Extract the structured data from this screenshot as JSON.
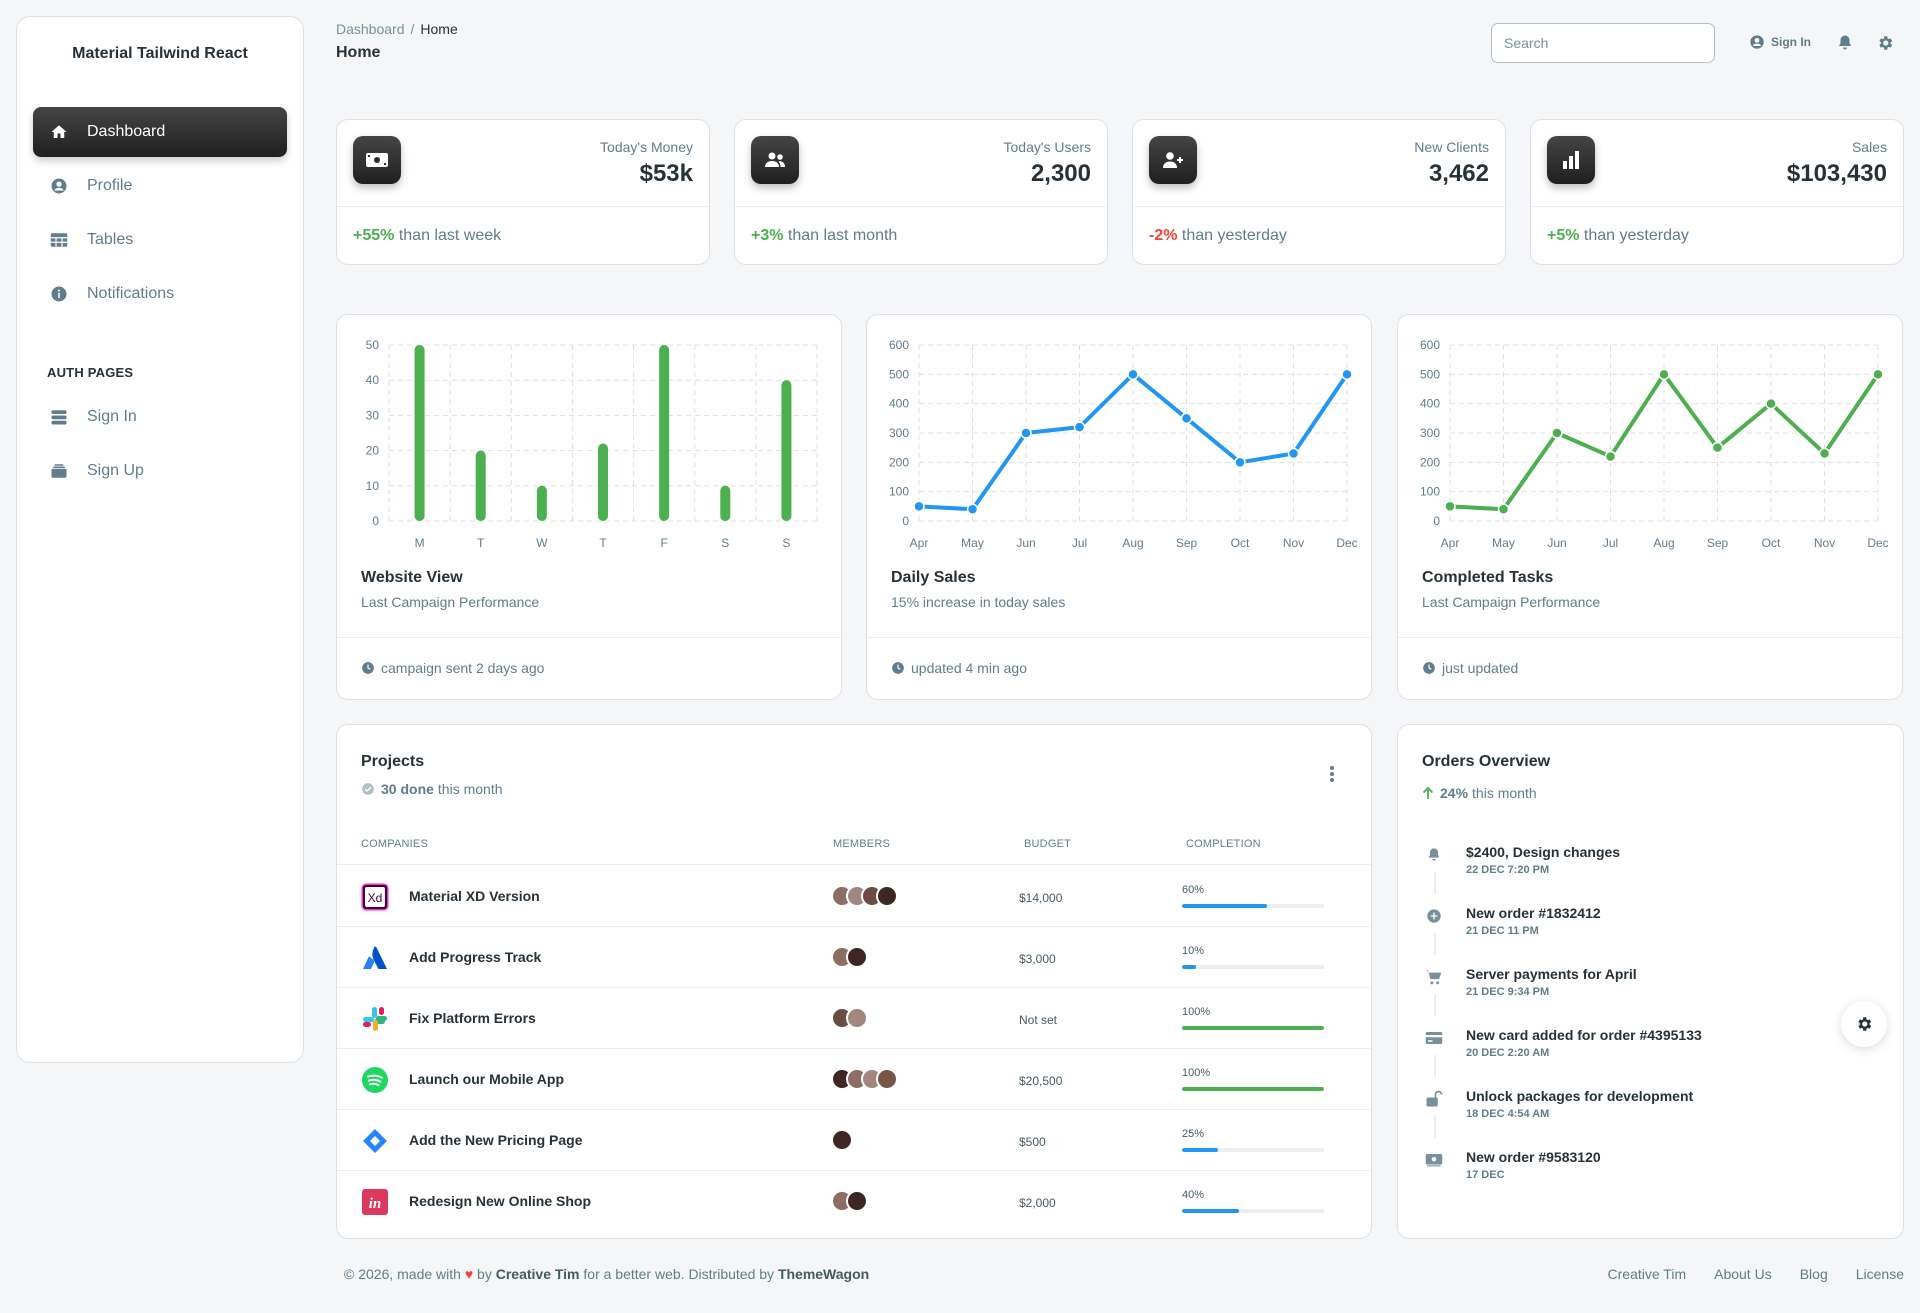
{
  "sidebar": {
    "brand": "Material Tailwind React",
    "items": [
      {
        "label": "Dashboard",
        "icon": "home-icon",
        "active": true
      },
      {
        "label": "Profile",
        "icon": "user-circle-icon"
      },
      {
        "label": "Tables",
        "icon": "table-icon"
      },
      {
        "label": "Notifications",
        "icon": "info-icon"
      }
    ],
    "section_title": "AUTH PAGES",
    "auth_items": [
      {
        "label": "Sign In",
        "icon": "server-stack-icon"
      },
      {
        "label": "Sign Up",
        "icon": "rectangle-stack-icon"
      }
    ]
  },
  "header": {
    "breadcrumb": [
      "Dashboard",
      "Home"
    ],
    "title": "Home",
    "search_placeholder": "Search",
    "signin_label": "Sign In",
    "icons": [
      "bell-icon",
      "gear-icon"
    ]
  },
  "stats": [
    {
      "label": "Today's Money",
      "value": "$53k",
      "change": "+55%",
      "tail": "than last week",
      "trend": "up",
      "icon": "banknotes-icon"
    },
    {
      "label": "Today's Users",
      "value": "2,300",
      "change": "+3%",
      "tail": "than last month",
      "trend": "up",
      "icon": "users-icon"
    },
    {
      "label": "New Clients",
      "value": "3,462",
      "change": "-2%",
      "tail": "than yesterday",
      "trend": "down",
      "icon": "user-plus-icon"
    },
    {
      "label": "Sales",
      "value": "$103,430",
      "change": "+5%",
      "tail": "than yesterday",
      "trend": "up",
      "icon": "chart-bar-icon"
    }
  ],
  "chart_cards": [
    {
      "title": "Website View",
      "subtitle": "Last Campaign Performance",
      "footer": "campaign sent 2 days ago"
    },
    {
      "title": "Daily Sales",
      "subtitle": "15% increase in today sales",
      "footer": "updated 4 min ago"
    },
    {
      "title": "Completed Tasks",
      "subtitle": "Last Campaign Performance",
      "footer": "just updated"
    }
  ],
  "chart_data": [
    {
      "type": "bar",
      "categories": [
        "M",
        "T",
        "W",
        "T",
        "F",
        "S",
        "S"
      ],
      "values": [
        50,
        20,
        10,
        22,
        50,
        10,
        40
      ],
      "ylim": [
        0,
        50
      ],
      "yticks": [
        0,
        10,
        20,
        30,
        40,
        50
      ],
      "grid": true,
      "color": "#4caf50"
    },
    {
      "type": "line",
      "categories": [
        "Apr",
        "May",
        "Jun",
        "Jul",
        "Aug",
        "Sep",
        "Oct",
        "Nov",
        "Dec"
      ],
      "values": [
        50,
        40,
        300,
        320,
        500,
        350,
        200,
        230,
        500
      ],
      "ylim": [
        0,
        600
      ],
      "yticks": [
        0,
        100,
        200,
        300,
        400,
        500,
        600
      ],
      "grid": true,
      "color": "#2196f3"
    },
    {
      "type": "line",
      "categories": [
        "Apr",
        "May",
        "Jun",
        "Jul",
        "Aug",
        "Sep",
        "Oct",
        "Nov",
        "Dec"
      ],
      "values": [
        50,
        40,
        300,
        220,
        500,
        250,
        400,
        230,
        500
      ],
      "ylim": [
        0,
        600
      ],
      "yticks": [
        0,
        100,
        200,
        300,
        400,
        500,
        600
      ],
      "grid": true,
      "color": "#4caf50"
    }
  ],
  "projects": {
    "title": "Projects",
    "done_count": "30 done",
    "done_tail": "this month",
    "columns": [
      "companies",
      "members",
      "budget",
      "completion"
    ],
    "rows": [
      {
        "name": "Material XD Version",
        "logo": "xd-logo-icon",
        "members": 4,
        "budget": "$14,000",
        "completion": 60
      },
      {
        "name": "Add Progress Track",
        "logo": "atlassian-logo-icon",
        "members": 2,
        "budget": "$3,000",
        "completion": 10
      },
      {
        "name": "Fix Platform Errors",
        "logo": "slack-logo-icon",
        "members": 2,
        "budget": "Not set",
        "completion": 100
      },
      {
        "name": "Launch our Mobile App",
        "logo": "spotify-logo-icon",
        "members": 4,
        "budget": "$20,500",
        "completion": 100
      },
      {
        "name": "Add the New Pricing Page",
        "logo": "jira-logo-icon",
        "members": 1,
        "budget": "$500",
        "completion": 25
      },
      {
        "name": "Redesign New Online Shop",
        "logo": "invision-logo-icon",
        "members": 2,
        "budget": "$2,000",
        "completion": 40
      }
    ]
  },
  "orders": {
    "title": "Orders Overview",
    "pct": "24%",
    "pct_tail": "this month",
    "items": [
      {
        "title": "$2400, Design changes",
        "date": "22 DEC 7:20 PM",
        "icon": "bell-icon"
      },
      {
        "title": "New order #1832412",
        "date": "21 DEC 11 PM",
        "icon": "plus-circle-icon"
      },
      {
        "title": "Server payments for April",
        "date": "21 DEC 9:34 PM",
        "icon": "shopping-cart-icon"
      },
      {
        "title": "New card added for order #4395133",
        "date": "20 DEC 2:20 AM",
        "icon": "credit-card-icon"
      },
      {
        "title": "Unlock packages for development",
        "date": "18 DEC 4:54 AM",
        "icon": "lock-open-icon"
      },
      {
        "title": "New order #9583120",
        "date": "17 DEC",
        "icon": "banknotes-icon"
      }
    ]
  },
  "footer": {
    "prefix": "© 2026, made with",
    "by": "by",
    "author": "Creative Tim",
    "mid": "for a better web. Distributed by",
    "distributor": "ThemeWagon",
    "links": [
      "Creative Tim",
      "About Us",
      "Blog",
      "License"
    ]
  },
  "colors": {
    "accent_dark": "#212121",
    "green": "#4caf50",
    "blue": "#2196f3",
    "red": "#f44336",
    "text_muted": "#607d8b"
  }
}
